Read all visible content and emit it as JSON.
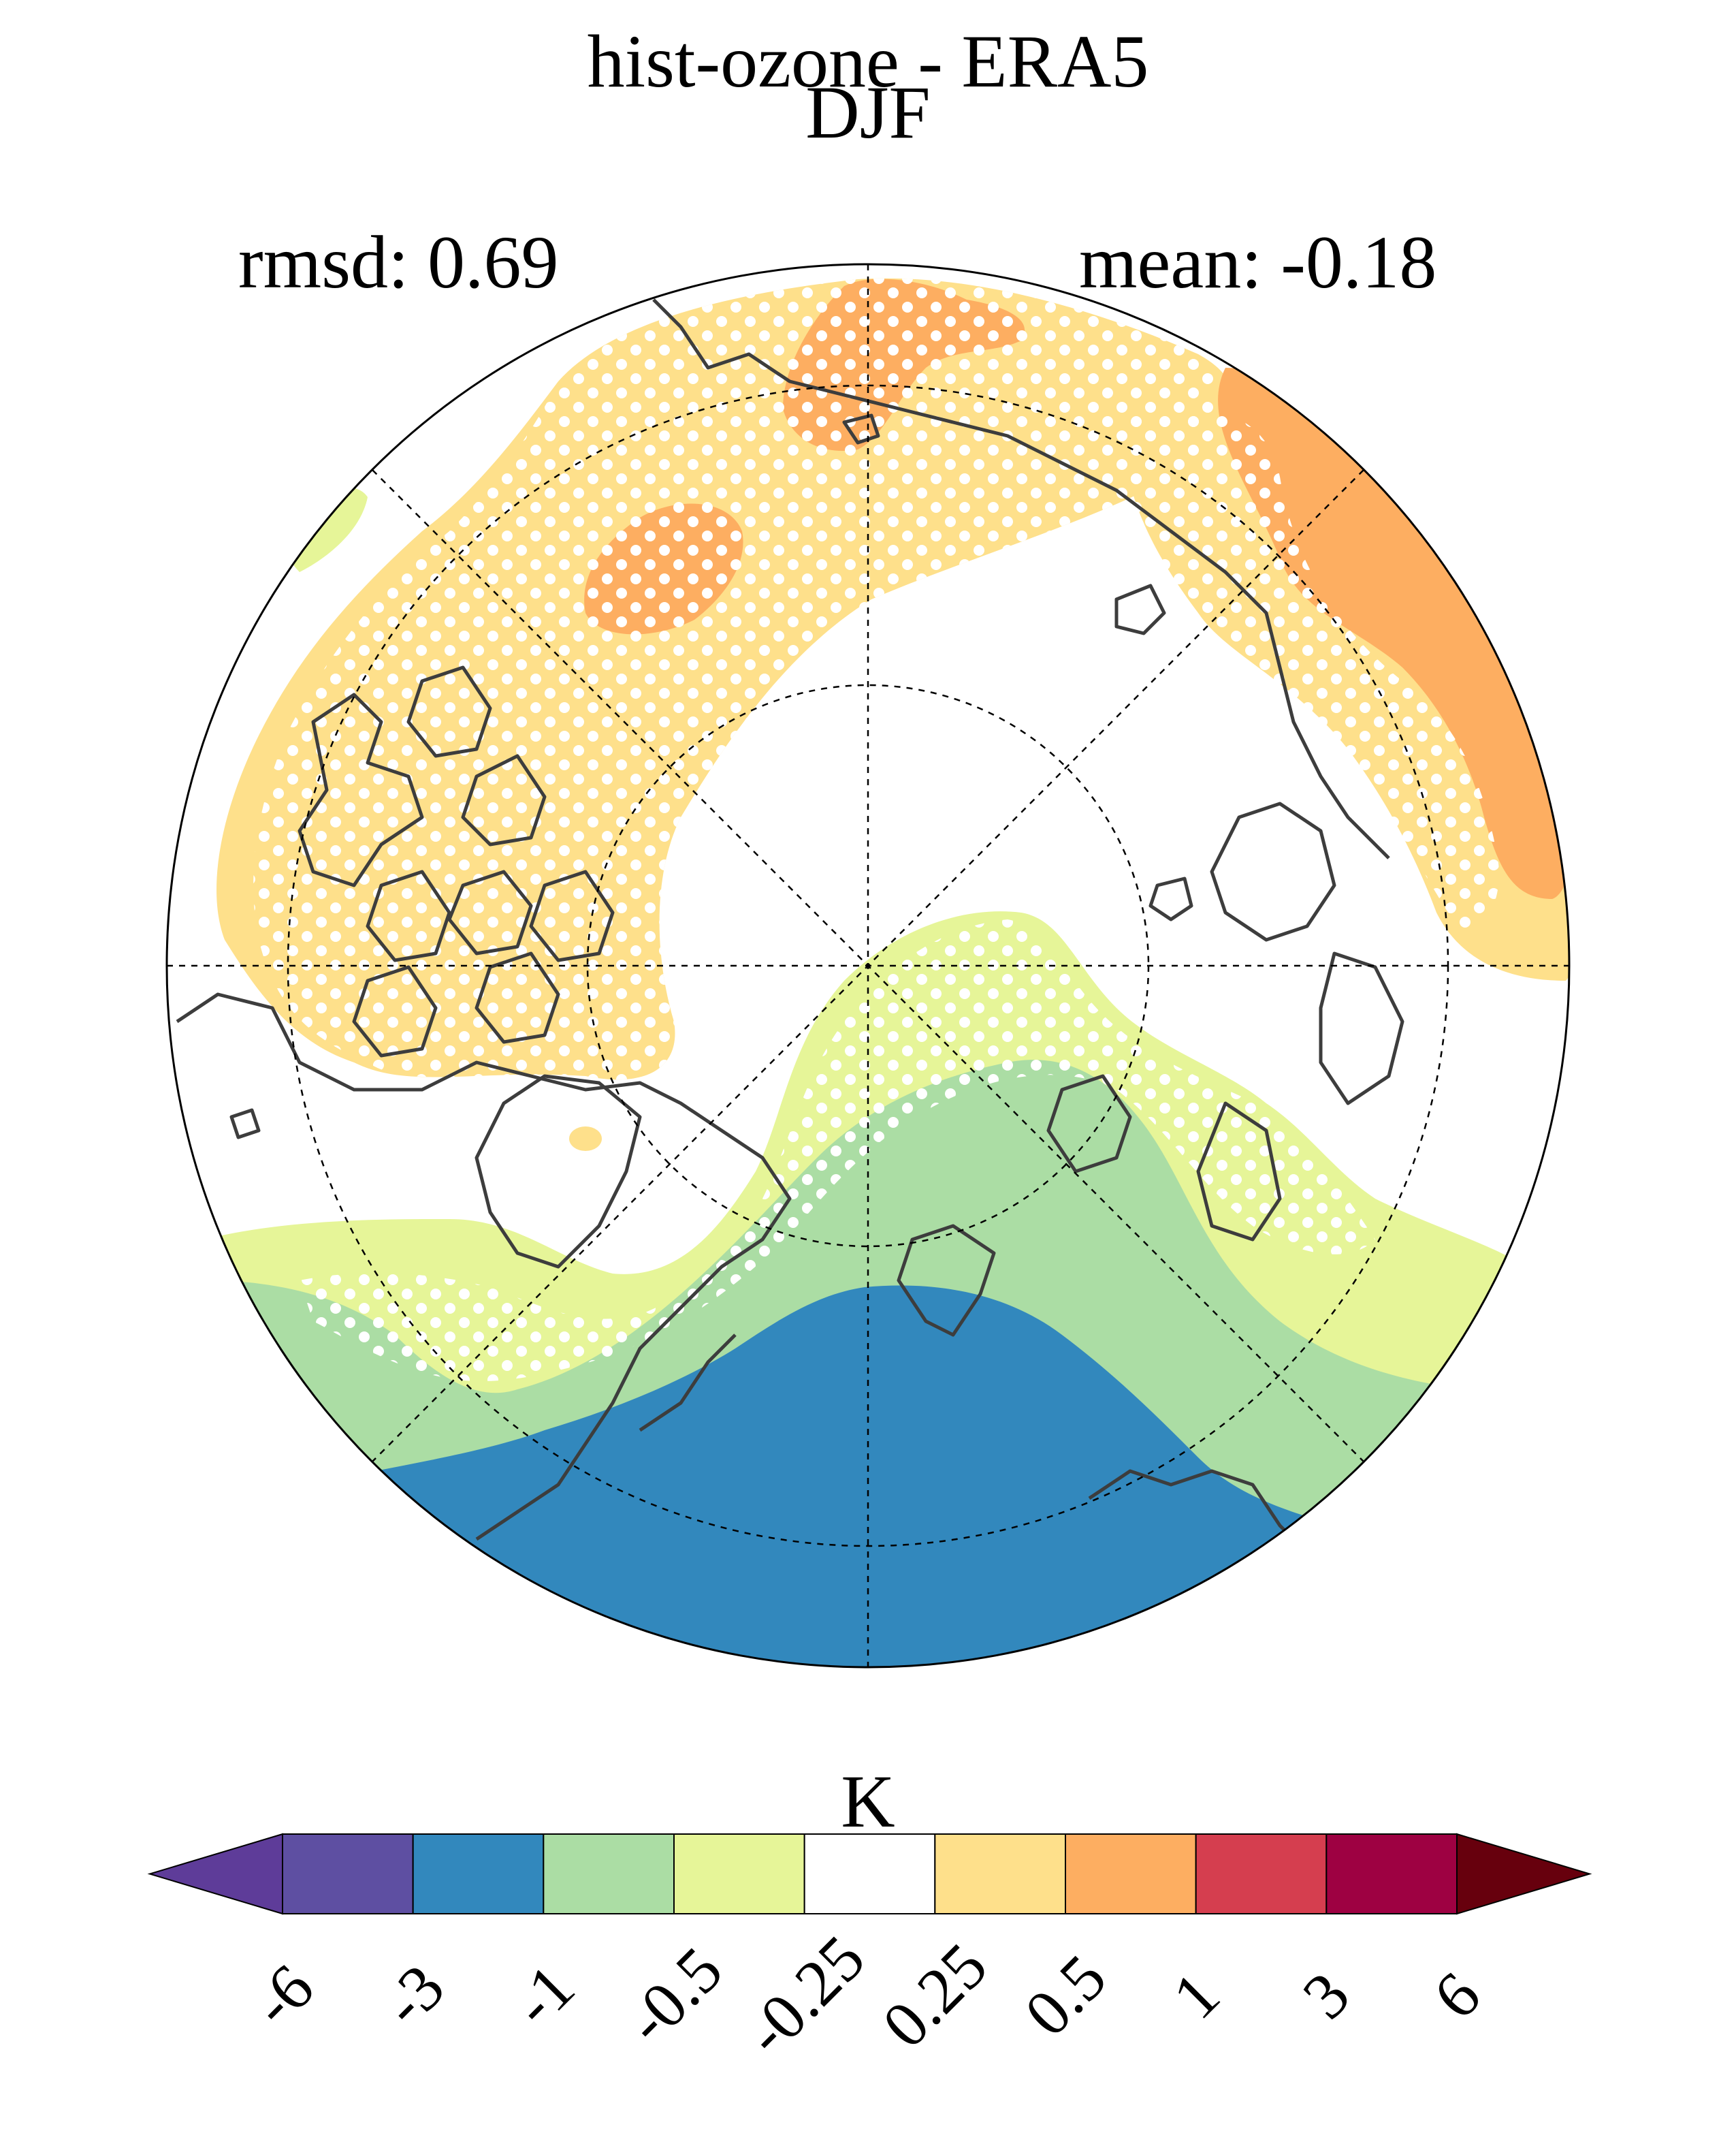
{
  "title": {
    "line1": "hist-ozone - ERA5",
    "line2": "DJF"
  },
  "stats": {
    "rmsd": "rmsd: 0.69",
    "mean": "mean: -0.18"
  },
  "map": {
    "projection": "north-polar-stereographic",
    "grid_lines": "dashed",
    "coastline_color": "#3d3d3d",
    "stippling": "white-dots"
  },
  "colorbar": {
    "unit": "K",
    "levels": [
      "-6",
      "-3",
      "-1",
      "-0.5",
      "-0.25",
      "0.25",
      "0.5",
      "1",
      "3",
      "6"
    ],
    "under_color": "#5e3c99",
    "over_color": "#67000d",
    "colors": [
      "#5e4fa2",
      "#3288bd",
      "#abdda4",
      "#e6f598",
      "#ffffff",
      "#fee08b",
      "#fdae61",
      "#d53e4f",
      "#9e0142"
    ]
  }
}
